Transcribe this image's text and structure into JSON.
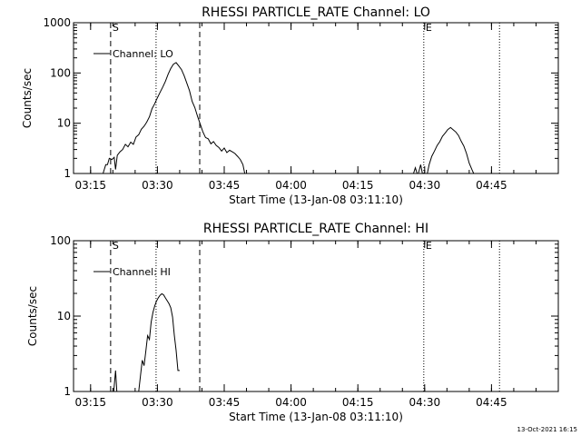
{
  "footer_timestamp": "13-Oct-2021 16:15",
  "chart_data": [
    {
      "type": "line",
      "title": "RHESSI PARTICLE_RATE Channel: LO",
      "xlabel": "Start Time (13-Jan-08 03:11:10)",
      "ylabel": "Counts/sec",
      "yscale": "log",
      "ylim": [
        1,
        1000
      ],
      "y_tick_labels": [
        {
          "value": 1,
          "label": "1"
        },
        {
          "value": 10,
          "label": "10"
        },
        {
          "value": 100,
          "label": "100"
        },
        {
          "value": 1000,
          "label": "1000"
        }
      ],
      "x_tick_labels": [
        "03:15",
        "03:30",
        "03:45",
        "04:00",
        "04:15",
        "04:30",
        "04:45"
      ],
      "x_tick_minutes": [
        15,
        30,
        45,
        60,
        75,
        90,
        105
      ],
      "xlim_minutes": [
        11.17,
        120
      ],
      "legend": {
        "label": "Channel: LO",
        "placement": "top-left"
      },
      "markers": [
        {
          "t": 19.5,
          "style": "dashed",
          "label": "S"
        },
        {
          "t": 29.7,
          "style": "dotted",
          "label": ""
        },
        {
          "t": 39.5,
          "style": "dashed",
          "label": ""
        },
        {
          "t": 89.8,
          "style": "dotted",
          "label": "E"
        },
        {
          "t": 106.8,
          "style": "dotted",
          "label": ""
        }
      ],
      "series": [
        {
          "name": "Channel: LO",
          "segments": [
            [
              [
                17.8,
                1
              ],
              [
                18.4,
                1.5
              ],
              [
                18.8,
                1.5
              ],
              [
                19.2,
                2
              ],
              [
                19.8,
                1.9
              ],
              [
                20.3,
                2.1
              ],
              [
                20.6,
                1.2
              ],
              [
                21.0,
                2.3
              ],
              [
                21.6,
                2.7
              ],
              [
                22.2,
                3.0
              ],
              [
                22.8,
                3.8
              ],
              [
                23.4,
                3.4
              ],
              [
                24.0,
                4.2
              ],
              [
                24.6,
                3.8
              ],
              [
                25.2,
                5.3
              ],
              [
                25.8,
                5.9
              ],
              [
                26.4,
                7.6
              ],
              [
                27.0,
                8.7
              ],
              [
                27.6,
                10.5
              ],
              [
                28.2,
                13.4
              ],
              [
                28.8,
                19.5
              ],
              [
                29.4,
                24.4
              ],
              [
                30.0,
                32.2
              ],
              [
                30.6,
                41.1
              ],
              [
                31.2,
                52.5
              ],
              [
                31.8,
                68.1
              ],
              [
                32.4,
                94.6
              ],
              [
                33.0,
                123
              ],
              [
                33.6,
                150
              ],
              [
                34.2,
                161
              ],
              [
                34.8,
                138
              ],
              [
                35.4,
                117
              ],
              [
                36.0,
                88.8
              ],
              [
                36.6,
                62.5
              ],
              [
                37.2,
                44.7
              ],
              [
                37.8,
                27.1
              ],
              [
                38.4,
                20.5
              ],
              [
                39.0,
                13.7
              ],
              [
                39.6,
                9.7
              ],
              [
                40.2,
                6.8
              ],
              [
                40.8,
                5.2
              ],
              [
                41.4,
                4.9
              ],
              [
                42.0,
                3.9
              ],
              [
                42.6,
                4.3
              ],
              [
                43.2,
                3.6
              ],
              [
                43.8,
                3.3
              ],
              [
                44.4,
                2.8
              ],
              [
                45.0,
                3.2
              ],
              [
                45.6,
                2.6
              ],
              [
                46.2,
                2.9
              ],
              [
                46.8,
                2.7
              ],
              [
                47.4,
                2.5
              ],
              [
                48.0,
                2.2
              ],
              [
                48.6,
                1.9
              ],
              [
                49.2,
                1.5
              ],
              [
                49.6,
                1
              ]
            ],
            [
              [
                87.5,
                1
              ],
              [
                87.9,
                1.3
              ],
              [
                88.3,
                1
              ],
              [
                88.6,
                1
              ],
              [
                89.1,
                1.5
              ],
              [
                89.5,
                1
              ]
            ],
            [
              [
                90.6,
                1
              ],
              [
                91.0,
                1.5
              ],
              [
                91.6,
                2.2
              ],
              [
                92.2,
                2.8
              ],
              [
                92.8,
                3.6
              ],
              [
                93.4,
                4.3
              ],
              [
                94.0,
                5.5
              ],
              [
                94.6,
                6.4
              ],
              [
                95.2,
                7.5
              ],
              [
                95.8,
                8.2
              ],
              [
                96.4,
                7.4
              ],
              [
                97.0,
                6.7
              ],
              [
                97.6,
                5.7
              ],
              [
                98.2,
                4.4
              ],
              [
                98.8,
                3.5
              ],
              [
                99.4,
                2.5
              ],
              [
                100.0,
                1.6
              ],
              [
                100.6,
                1.2
              ],
              [
                101.0,
                1
              ]
            ]
          ]
        }
      ]
    },
    {
      "type": "line",
      "title": "RHESSI PARTICLE_RATE Channel: HI",
      "xlabel": "Start Time (13-Jan-08 03:11:10)",
      "ylabel": "Counts/sec",
      "yscale": "log",
      "ylim": [
        1,
        100
      ],
      "y_tick_labels": [
        {
          "value": 1,
          "label": "1"
        },
        {
          "value": 10,
          "label": "10"
        },
        {
          "value": 100,
          "label": "100"
        }
      ],
      "x_tick_labels": [
        "03:15",
        "03:30",
        "03:45",
        "04:00",
        "04:15",
        "04:30",
        "04:45"
      ],
      "x_tick_minutes": [
        15,
        30,
        45,
        60,
        75,
        90,
        105
      ],
      "xlim_minutes": [
        11.17,
        120
      ],
      "legend": {
        "label": "Channel: HI",
        "placement": "top-left"
      },
      "markers": [
        {
          "t": 19.5,
          "style": "dashed",
          "label": "S"
        },
        {
          "t": 29.7,
          "style": "dotted",
          "label": ""
        },
        {
          "t": 39.5,
          "style": "dashed",
          "label": ""
        },
        {
          "t": 89.8,
          "style": "dotted",
          "label": "E"
        },
        {
          "t": 106.8,
          "style": "dotted",
          "label": ""
        }
      ],
      "series": [
        {
          "name": "Channel: HI",
          "segments": [
            [
              [
                20.2,
                1
              ],
              [
                20.6,
                1.9
              ],
              [
                20.9,
                1
              ]
            ],
            [
              [
                25.8,
                1
              ],
              [
                26.2,
                1.6
              ],
              [
                26.6,
                2.6
              ],
              [
                27.0,
                2.2
              ],
              [
                27.4,
                3.4
              ],
              [
                27.8,
                5.5
              ],
              [
                28.2,
                4.9
              ],
              [
                28.6,
                8.3
              ],
              [
                29.0,
                11.2
              ],
              [
                29.4,
                13.6
              ],
              [
                29.8,
                15.8
              ],
              [
                30.2,
                17.5
              ],
              [
                30.6,
                18.9
              ],
              [
                31.0,
                19.8
              ],
              [
                31.4,
                19.1
              ],
              [
                31.8,
                17.4
              ],
              [
                32.2,
                16.0
              ],
              [
                32.6,
                14.6
              ],
              [
                33.0,
                12.9
              ],
              [
                33.4,
                9.7
              ],
              [
                33.8,
                5.6
              ],
              [
                34.2,
                3.5
              ],
              [
                34.6,
                1.9
              ],
              [
                35.0,
                1.9
              ]
            ]
          ]
        }
      ]
    }
  ]
}
